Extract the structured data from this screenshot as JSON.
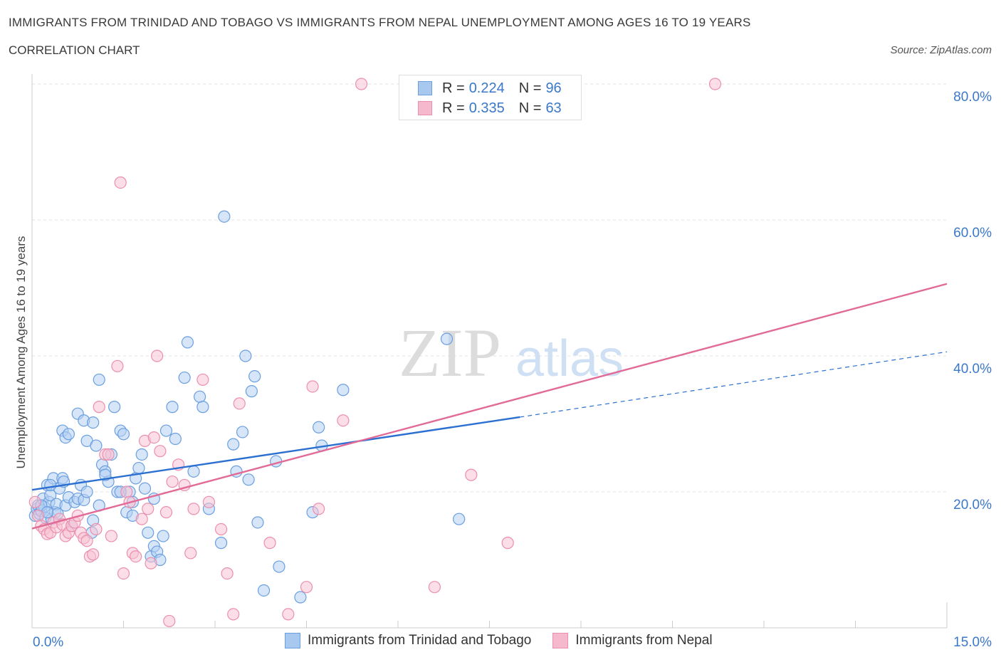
{
  "header": {
    "title": "IMMIGRANTS FROM TRINIDAD AND TOBAGO VS IMMIGRANTS FROM NEPAL UNEMPLOYMENT AMONG AGES 16 TO 19 YEARS",
    "subtitle": "CORRELATION CHART",
    "source": "Source: ZipAtlas.com"
  },
  "watermark": {
    "zip": "ZIP",
    "atlas": "atlas"
  },
  "legend_top": {
    "rows": [
      {
        "r_key": "R =",
        "r_val": "0.224",
        "n_key": "N =",
        "n_val": "96",
        "color": "#a9c8f0"
      },
      {
        "r_key": "R =",
        "r_val": "0.335",
        "n_key": "N =",
        "n_val": "63",
        "color": "#f5b8cc"
      }
    ]
  },
  "chart_data": {
    "type": "scatter",
    "xlabel": "",
    "ylabel": "Unemployment Among Ages 16 to 19 years",
    "xlim": [
      0,
      15
    ],
    "ylim": [
      0,
      80
    ],
    "x_tick_labels": [
      {
        "value": 0,
        "label": "0.0%"
      },
      {
        "value": 15,
        "label": "15.0%"
      }
    ],
    "y_tick_labels": [
      {
        "value": 20,
        "label": "20.0%"
      },
      {
        "value": 40,
        "label": "40.0%"
      },
      {
        "value": 60,
        "label": "60.0%"
      },
      {
        "value": 80,
        "label": "80.0%"
      }
    ],
    "grid": true,
    "legend_position": "bottom",
    "series": [
      {
        "name": "Immigrants from Trinidad and Tobago",
        "color": "#6a9fe0",
        "fill": "#b5d0f3",
        "trend": {
          "x0": 0,
          "y0": 20.3,
          "x1": 8.0,
          "y1": 31.0,
          "dash_to_x": 15.0,
          "dash_to_y": 40.6,
          "color": "#2b6fd1"
        },
        "points": [
          [
            0.05,
            16.5
          ],
          [
            0.08,
            17.5
          ],
          [
            0.1,
            18.0
          ],
          [
            0.12,
            16.8
          ],
          [
            0.15,
            17.2
          ],
          [
            0.18,
            19.0
          ],
          [
            0.2,
            17.8
          ],
          [
            0.22,
            16.2
          ],
          [
            0.25,
            21.0
          ],
          [
            0.28,
            18.5
          ],
          [
            0.3,
            19.5
          ],
          [
            0.32,
            16.0
          ],
          [
            0.35,
            22.0
          ],
          [
            0.38,
            17.0
          ],
          [
            0.4,
            18.2
          ],
          [
            0.45,
            20.5
          ],
          [
            0.5,
            22.0
          ],
          [
            0.52,
            21.5
          ],
          [
            0.55,
            18.0
          ],
          [
            0.6,
            19.2
          ],
          [
            0.65,
            15.0
          ],
          [
            0.7,
            18.5
          ],
          [
            0.75,
            19.0
          ],
          [
            0.8,
            21.0
          ],
          [
            0.85,
            18.8
          ],
          [
            0.9,
            20.0
          ],
          [
            0.5,
            29.0
          ],
          [
            0.55,
            28.0
          ],
          [
            0.6,
            28.5
          ],
          [
            0.75,
            31.5
          ],
          [
            0.85,
            30.5
          ],
          [
            0.9,
            27.5
          ],
          [
            1.0,
            30.2
          ],
          [
            1.05,
            26.8
          ],
          [
            1.1,
            36.5
          ],
          [
            1.15,
            24.0
          ],
          [
            1.2,
            23.0
          ],
          [
            1.25,
            21.5
          ],
          [
            1.3,
            25.5
          ],
          [
            1.35,
            32.5
          ],
          [
            1.4,
            20.0
          ],
          [
            1.45,
            29.0
          ],
          [
            1.5,
            28.5
          ],
          [
            1.55,
            17.0
          ],
          [
            1.6,
            20.0
          ],
          [
            1.65,
            18.5
          ],
          [
            1.7,
            22.0
          ],
          [
            1.75,
            23.5
          ],
          [
            1.8,
            25.5
          ],
          [
            1.9,
            14.0
          ],
          [
            1.95,
            10.5
          ],
          [
            2.0,
            12.0
          ],
          [
            2.05,
            11.2
          ],
          [
            2.1,
            10.0
          ],
          [
            2.15,
            13.5
          ],
          [
            2.2,
            29.0
          ],
          [
            2.3,
            32.5
          ],
          [
            2.35,
            27.8
          ],
          [
            2.5,
            36.8
          ],
          [
            2.55,
            42.0
          ],
          [
            2.65,
            23.0
          ],
          [
            2.75,
            34.0
          ],
          [
            2.8,
            32.5
          ],
          [
            2.9,
            17.5
          ],
          [
            3.1,
            12.5
          ],
          [
            3.15,
            60.5
          ],
          [
            3.3,
            27.0
          ],
          [
            3.35,
            23.0
          ],
          [
            3.45,
            28.8
          ],
          [
            3.5,
            40.0
          ],
          [
            3.55,
            21.8
          ],
          [
            3.6,
            34.8
          ],
          [
            3.65,
            37.0
          ],
          [
            3.7,
            15.5
          ],
          [
            3.8,
            5.5
          ],
          [
            4.0,
            24.5
          ],
          [
            4.05,
            9.0
          ],
          [
            4.4,
            4.5
          ],
          [
            4.6,
            17.0
          ],
          [
            4.7,
            29.5
          ],
          [
            4.75,
            26.8
          ],
          [
            5.1,
            35.0
          ],
          [
            6.8,
            42.5
          ],
          [
            7.0,
            16.0
          ],
          [
            1.0,
            15.8
          ],
          [
            0.98,
            14.0
          ],
          [
            1.1,
            18.0
          ],
          [
            1.2,
            22.5
          ],
          [
            1.65,
            16.5
          ],
          [
            1.85,
            20.5
          ],
          [
            2.0,
            19.0
          ],
          [
            1.45,
            20.0
          ],
          [
            0.3,
            21.0
          ],
          [
            0.15,
            18.0
          ],
          [
            0.42,
            16.8
          ],
          [
            0.25,
            17.0
          ]
        ]
      },
      {
        "name": "Immigrants from Nepal",
        "color": "#eb8fae",
        "fill": "#f7c3d4",
        "trend": {
          "x0": 0,
          "y0": 14.6,
          "x1": 15.0,
          "y1": 50.6,
          "color": "#e26a97"
        },
        "points": [
          [
            0.05,
            18.5
          ],
          [
            0.1,
            16.5
          ],
          [
            0.15,
            15.0
          ],
          [
            0.2,
            14.5
          ],
          [
            0.25,
            13.8
          ],
          [
            0.3,
            14.0
          ],
          [
            0.35,
            15.5
          ],
          [
            0.4,
            14.8
          ],
          [
            0.45,
            16.0
          ],
          [
            0.5,
            15.2
          ],
          [
            0.55,
            13.5
          ],
          [
            0.6,
            14.0
          ],
          [
            0.65,
            15.0
          ],
          [
            0.7,
            15.5
          ],
          [
            0.75,
            16.5
          ],
          [
            0.8,
            14.0
          ],
          [
            0.85,
            13.2
          ],
          [
            0.9,
            12.8
          ],
          [
            0.95,
            10.5
          ],
          [
            1.0,
            10.8
          ],
          [
            1.05,
            14.5
          ],
          [
            1.1,
            32.5
          ],
          [
            1.2,
            25.5
          ],
          [
            1.25,
            25.5
          ],
          [
            1.3,
            13.5
          ],
          [
            1.4,
            38.5
          ],
          [
            1.45,
            65.5
          ],
          [
            1.5,
            8.0
          ],
          [
            1.55,
            20.0
          ],
          [
            1.6,
            18.5
          ],
          [
            1.65,
            11.0
          ],
          [
            1.7,
            10.5
          ],
          [
            1.8,
            16.0
          ],
          [
            1.85,
            27.5
          ],
          [
            1.9,
            17.5
          ],
          [
            1.95,
            9.5
          ],
          [
            2.0,
            28.0
          ],
          [
            2.05,
            40.0
          ],
          [
            2.1,
            26.0
          ],
          [
            2.2,
            17.0
          ],
          [
            2.25,
            1.0
          ],
          [
            2.3,
            21.5
          ],
          [
            2.4,
            24.0
          ],
          [
            2.5,
            21.0
          ],
          [
            2.6,
            11.0
          ],
          [
            2.65,
            17.5
          ],
          [
            2.8,
            36.5
          ],
          [
            2.9,
            18.5
          ],
          [
            3.1,
            14.5
          ],
          [
            3.2,
            8.0
          ],
          [
            3.3,
            2.0
          ],
          [
            3.4,
            33.0
          ],
          [
            3.9,
            12.5
          ],
          [
            4.2,
            2.0
          ],
          [
            4.5,
            6.0
          ],
          [
            4.6,
            35.5
          ],
          [
            4.7,
            17.5
          ],
          [
            5.1,
            30.5
          ],
          [
            6.6,
            6.0
          ],
          [
            7.2,
            22.5
          ],
          [
            7.8,
            12.5
          ],
          [
            5.4,
            80.0
          ],
          [
            11.2,
            80.0
          ]
        ]
      }
    ]
  },
  "legend_bottom": {
    "items": [
      {
        "label": "Immigrants from Trinidad and Tobago",
        "color": "#a9c8f0"
      },
      {
        "label": "Immigrants from Nepal",
        "color": "#f5b8cc"
      }
    ]
  }
}
